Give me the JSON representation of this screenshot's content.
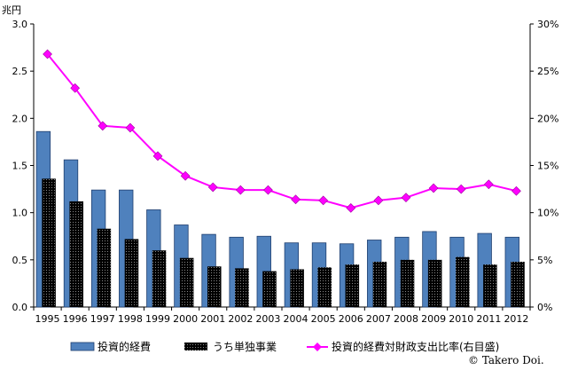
{
  "chart_data": {
    "type": "bar",
    "left_unit": "兆円",
    "x": [
      "1995",
      "1996",
      "1997",
      "1998",
      "1999",
      "2000",
      "2001",
      "2002",
      "2003",
      "2004",
      "2005",
      "2006",
      "2007",
      "2008",
      "2009",
      "2010",
      "2011",
      "2012"
    ],
    "y_left": {
      "min": 0,
      "max": 3.0,
      "ticks": [
        "0.0",
        "0.5",
        "1.0",
        "1.5",
        "2.0",
        "2.5",
        "3.0"
      ]
    },
    "y_right": {
      "min": 0,
      "max": 30,
      "ticks": [
        "0%",
        "5%",
        "10%",
        "15%",
        "20%",
        "25%",
        "30%"
      ]
    },
    "grid": false,
    "legend_position": "bottom",
    "series": [
      {
        "name": "投資的経費",
        "kind": "bar",
        "axis": "left",
        "color": "#4f81bd",
        "values": [
          1.86,
          1.56,
          1.24,
          1.24,
          1.03,
          0.87,
          0.77,
          0.74,
          0.75,
          0.68,
          0.68,
          0.67,
          0.71,
          0.74,
          0.8,
          0.74,
          0.78,
          0.74
        ]
      },
      {
        "name": "うち単独事業",
        "kind": "bar",
        "axis": "left",
        "color": "#000000",
        "values": [
          1.36,
          1.12,
          0.83,
          0.72,
          0.6,
          0.52,
          0.43,
          0.41,
          0.38,
          0.4,
          0.42,
          0.45,
          0.48,
          0.5,
          0.5,
          0.53,
          0.45,
          0.48
        ]
      },
      {
        "name": "投資的経費対財政支出比率(右目盛)",
        "kind": "line",
        "axis": "right",
        "color": "#ff00ff",
        "values": [
          26.8,
          23.2,
          19.2,
          19.0,
          16.0,
          13.9,
          12.7,
          12.4,
          12.4,
          11.4,
          11.3,
          10.5,
          11.3,
          11.6,
          12.6,
          12.5,
          13.0,
          12.3
        ]
      }
    ]
  },
  "credit": "© Takero Doi."
}
